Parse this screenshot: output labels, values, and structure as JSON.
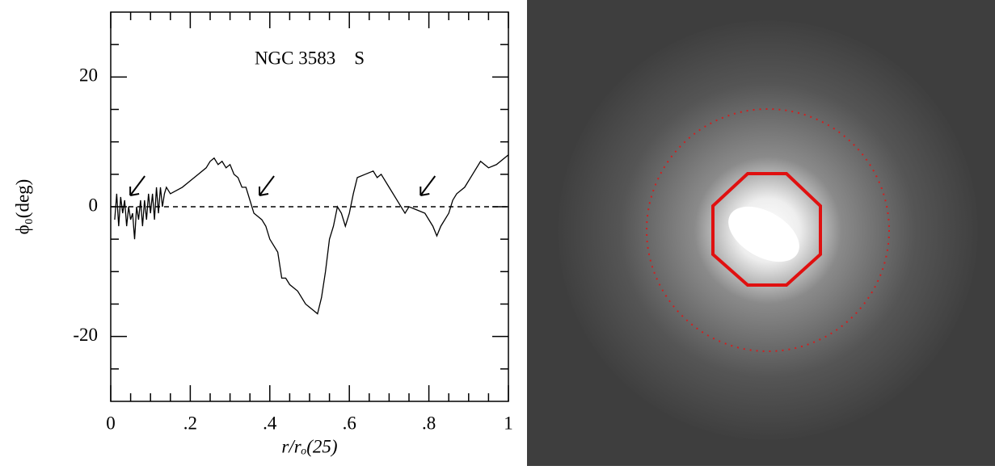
{
  "chart_data": {
    "type": "line",
    "annotation": "NGC 3583    S",
    "xlabel": "r/rₒ(25)",
    "ylabel": "ϕ₀(deg)",
    "xlim": [
      0,
      1
    ],
    "ylim": [
      -30,
      30
    ],
    "xticks": [
      0,
      {
        "value": 0.2,
        "label": ".2"
      },
      {
        "value": 0.4,
        "label": ".4"
      },
      {
        "value": 0.6,
        "label": ".6"
      },
      {
        "value": 0.8,
        "label": ".8"
      },
      1
    ],
    "yticks": [
      -20,
      0,
      20
    ],
    "xminor_ticks": [
      0.05,
      0.1,
      0.15,
      0.25,
      0.3,
      0.35,
      0.45,
      0.5,
      0.55,
      0.65,
      0.7,
      0.75,
      0.85,
      0.9,
      0.95
    ],
    "yminor_ticks": [
      -25,
      -15,
      -10,
      -5,
      5,
      10,
      15,
      25
    ],
    "reference_line": 0,
    "arrows_x": [
      0.045,
      0.37,
      0.775
    ],
    "color": "#000000",
    "x": [
      0.01,
      0.015,
      0.02,
      0.025,
      0.03,
      0.035,
      0.04,
      0.045,
      0.05,
      0.055,
      0.06,
      0.065,
      0.07,
      0.075,
      0.08,
      0.085,
      0.09,
      0.095,
      0.1,
      0.105,
      0.11,
      0.115,
      0.12,
      0.125,
      0.13,
      0.135,
      0.14,
      0.15,
      0.18,
      0.2,
      0.22,
      0.24,
      0.25,
      0.26,
      0.27,
      0.28,
      0.29,
      0.3,
      0.31,
      0.32,
      0.33,
      0.34,
      0.35,
      0.36,
      0.37,
      0.38,
      0.39,
      0.4,
      0.42,
      0.43,
      0.44,
      0.45,
      0.47,
      0.49,
      0.51,
      0.52,
      0.53,
      0.54,
      0.55,
      0.56,
      0.57,
      0.58,
      0.59,
      0.6,
      0.61,
      0.62,
      0.64,
      0.66,
      0.67,
      0.68,
      0.7,
      0.72,
      0.74,
      0.75,
      0.77,
      0.79,
      0.81,
      0.82,
      0.83,
      0.85,
      0.86,
      0.87,
      0.89,
      0.91,
      0.93,
      0.95,
      0.97,
      1
    ],
    "values": [
      -2,
      2,
      -3,
      1.5,
      -1,
      1,
      -3,
      0,
      -2,
      -1,
      -5,
      0,
      -2,
      1,
      -3,
      1,
      -2,
      2,
      -1,
      2,
      -2,
      3,
      -1,
      3,
      0,
      2,
      3,
      2,
      3,
      4,
      5,
      6,
      7,
      7.5,
      6.5,
      7,
      6,
      6.5,
      5,
      4.5,
      3,
      3,
      1,
      -1,
      -1.5,
      -2,
      -3,
      -5,
      -7,
      -11,
      -11,
      -12,
      -13,
      -15,
      -16,
      -16.5,
      -14,
      -10,
      -5,
      -3,
      0,
      -1,
      -3,
      -1,
      2,
      4.5,
      5,
      5.5,
      4.5,
      5,
      3,
      1,
      -1,
      0,
      -0.5,
      -1,
      -3,
      -4.5,
      -3,
      -1,
      1,
      2,
      3,
      5,
      7,
      6,
      6.5,
      8
    ]
  }
}
